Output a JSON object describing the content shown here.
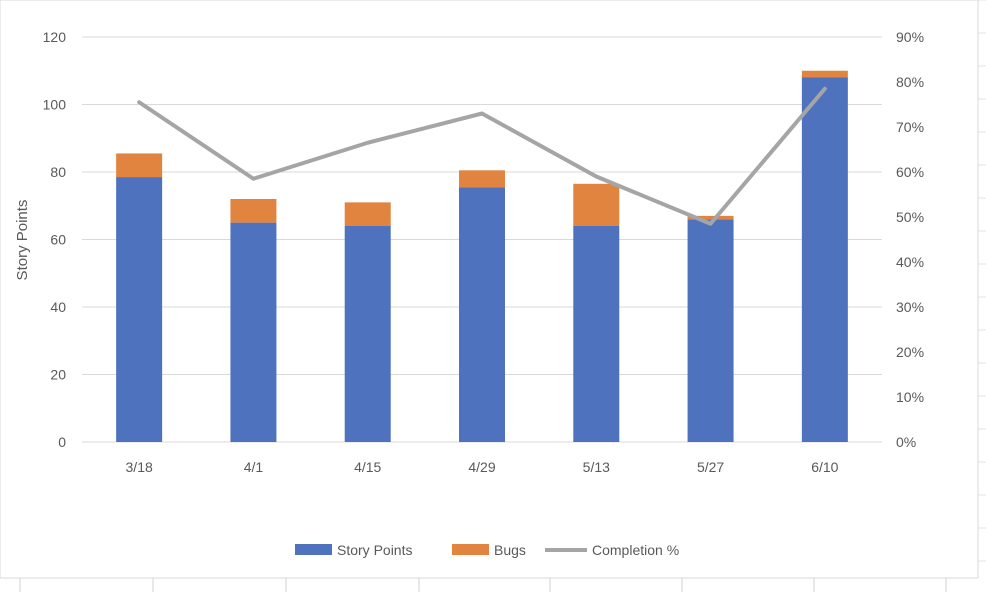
{
  "chart_data": {
    "type": "bar",
    "stacked": true,
    "categories": [
      "3/18",
      "4/1",
      "4/15",
      "4/29",
      "5/13",
      "5/27",
      "6/10"
    ],
    "series": [
      {
        "name": "Story Points",
        "kind": "bar",
        "axis": "left",
        "color": "#4E72BE",
        "values": [
          78.5,
          65,
          64,
          75.5,
          64,
          66,
          108
        ]
      },
      {
        "name": "Bugs",
        "kind": "bar",
        "axis": "left",
        "color": "#E0843F",
        "values": [
          7,
          7,
          7,
          5,
          12.5,
          1,
          2
        ]
      },
      {
        "name": "Completion %",
        "kind": "line",
        "axis": "right",
        "color": "#A5A5A5",
        "values": [
          75.5,
          58.5,
          66.5,
          73,
          59,
          48.5,
          78.5
        ]
      }
    ],
    "ylabel": "Story Points",
    "ylim": [
      0,
      120
    ],
    "yticks": [
      "0",
      "20",
      "40",
      "60",
      "80",
      "100",
      "120"
    ],
    "y2lim": [
      0,
      90
    ],
    "y2ticks": [
      "0%",
      "10%",
      "20%",
      "30%",
      "40%",
      "50%",
      "60%",
      "70%",
      "80%",
      "90%"
    ],
    "grid": true,
    "legend_position": "bottom"
  }
}
